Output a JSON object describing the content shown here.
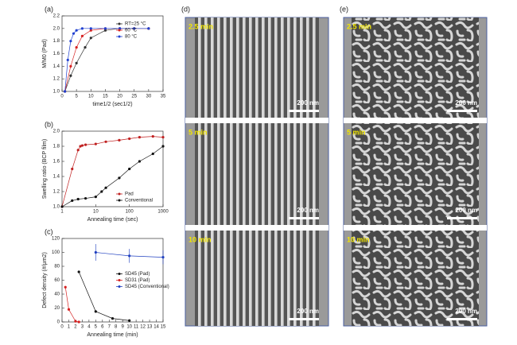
{
  "chart_data": [
    {
      "type": "line",
      "panel": "(a)",
      "xlabel": "time1/2 (sec1/2)",
      "ylabel": "M/M0 (Pad)",
      "xlim": [
        0,
        35
      ],
      "xticks": [
        0,
        5,
        10,
        15,
        20,
        25,
        30,
        35
      ],
      "ylim": [
        1.0,
        2.2
      ],
      "yticks": [
        {
          "value": 1.0,
          "label": "1.0"
        },
        1.2,
        1.4,
        1.6,
        1.8,
        {
          "value": 2.0,
          "label": "2.0"
        },
        2.2
      ],
      "legend": "upper right",
      "series": [
        {
          "name": "RT=25 °C",
          "color": "#333333",
          "x": [
            1,
            3,
            5,
            8,
            10,
            15,
            20,
            25,
            30
          ],
          "values": [
            1.0,
            1.25,
            1.45,
            1.7,
            1.85,
            1.97,
            2.0,
            2.0,
            2.0
          ]
        },
        {
          "name": "60 °C",
          "color": "#d62020",
          "x": [
            1,
            3,
            5,
            7,
            10,
            15,
            20,
            25,
            30
          ],
          "values": [
            1.0,
            1.4,
            1.7,
            1.88,
            1.97,
            2.0,
            2.0,
            2.0,
            2.0
          ]
        },
        {
          "name": "80 °C",
          "color": "#2040d0",
          "x": [
            1,
            2,
            3,
            4,
            5,
            7,
            10,
            15,
            20,
            25,
            30
          ],
          "values": [
            1.0,
            1.5,
            1.8,
            1.92,
            1.97,
            2.0,
            2.0,
            2.0,
            2.0,
            2.0,
            2.0
          ]
        }
      ]
    },
    {
      "type": "line",
      "panel": "(b)",
      "xlabel": "Annealing time (sec)",
      "ylabel": "Swelling ratio (BCP film)",
      "xscale": "log",
      "xlim": [
        1,
        1000
      ],
      "xticks": [
        1,
        10,
        100,
        1000
      ],
      "ylim": [
        1.0,
        2.0
      ],
      "yticks": [
        {
          "value": 1.0,
          "label": "1.0"
        },
        1.2,
        1.4,
        1.6,
        1.8,
        {
          "value": 2.0,
          "label": "2.0"
        }
      ],
      "legend": "lower right",
      "series": [
        {
          "name": "Pad",
          "color": "#c02020",
          "x": [
            1,
            2,
            3,
            3.5,
            4,
            5,
            10,
            20,
            50,
            100,
            200,
            500,
            1000
          ],
          "values": [
            1.0,
            1.5,
            1.75,
            1.8,
            1.81,
            1.82,
            1.83,
            1.86,
            1.88,
            1.9,
            1.92,
            1.93,
            1.92
          ]
        },
        {
          "name": "Conventional",
          "color": "#111111",
          "x": [
            1,
            2,
            3,
            5,
            10,
            15,
            20,
            50,
            100,
            200,
            500,
            1000
          ],
          "values": [
            1.0,
            1.08,
            1.1,
            1.11,
            1.13,
            1.2,
            1.25,
            1.38,
            1.5,
            1.6,
            1.7,
            1.8
          ]
        }
      ]
    },
    {
      "type": "line",
      "panel": "(c)",
      "xlabel": "Annealing time (min)",
      "ylabel": "Defect density (#/μm2)",
      "xlim": [
        0,
        15
      ],
      "xticks": [
        0,
        1,
        2,
        3,
        4,
        5,
        6,
        7,
        8,
        9,
        10,
        11,
        12,
        13,
        14,
        15
      ],
      "ylim": [
        0,
        120
      ],
      "yticks": [
        0,
        20,
        40,
        60,
        80,
        100,
        120
      ],
      "legend": "center right",
      "series": [
        {
          "name": "SD45 (Pad)",
          "color": "#111111",
          "x": [
            2.5,
            5,
            7.5,
            10
          ],
          "values": [
            72,
            15,
            5,
            2
          ]
        },
        {
          "name": "SD31 (Pad)",
          "color": "#d62020",
          "x": [
            0.5,
            1,
            2,
            2.5
          ],
          "values": [
            50,
            18,
            1,
            0
          ]
        },
        {
          "name": "SD45 (Conventional)",
          "color": "#2040c0",
          "x": [
            5,
            10,
            15
          ],
          "values": [
            100,
            95,
            93
          ],
          "errors": [
            12,
            10,
            10
          ]
        }
      ]
    }
  ],
  "images": [
    {
      "panel": "(d)",
      "frames": [
        {
          "time": "2.5 min",
          "scale": "200 nm"
        },
        {
          "time": "5 min",
          "scale": "200 nm"
        },
        {
          "time": "10 min",
          "scale": "200 nm"
        }
      ]
    },
    {
      "panel": "(e)",
      "frames": [
        {
          "time": "2.5 min",
          "scale": "200 nm"
        },
        {
          "time": "5 min",
          "scale": "200 nm"
        },
        {
          "time": "10 min",
          "scale": "200 nm"
        }
      ]
    }
  ]
}
